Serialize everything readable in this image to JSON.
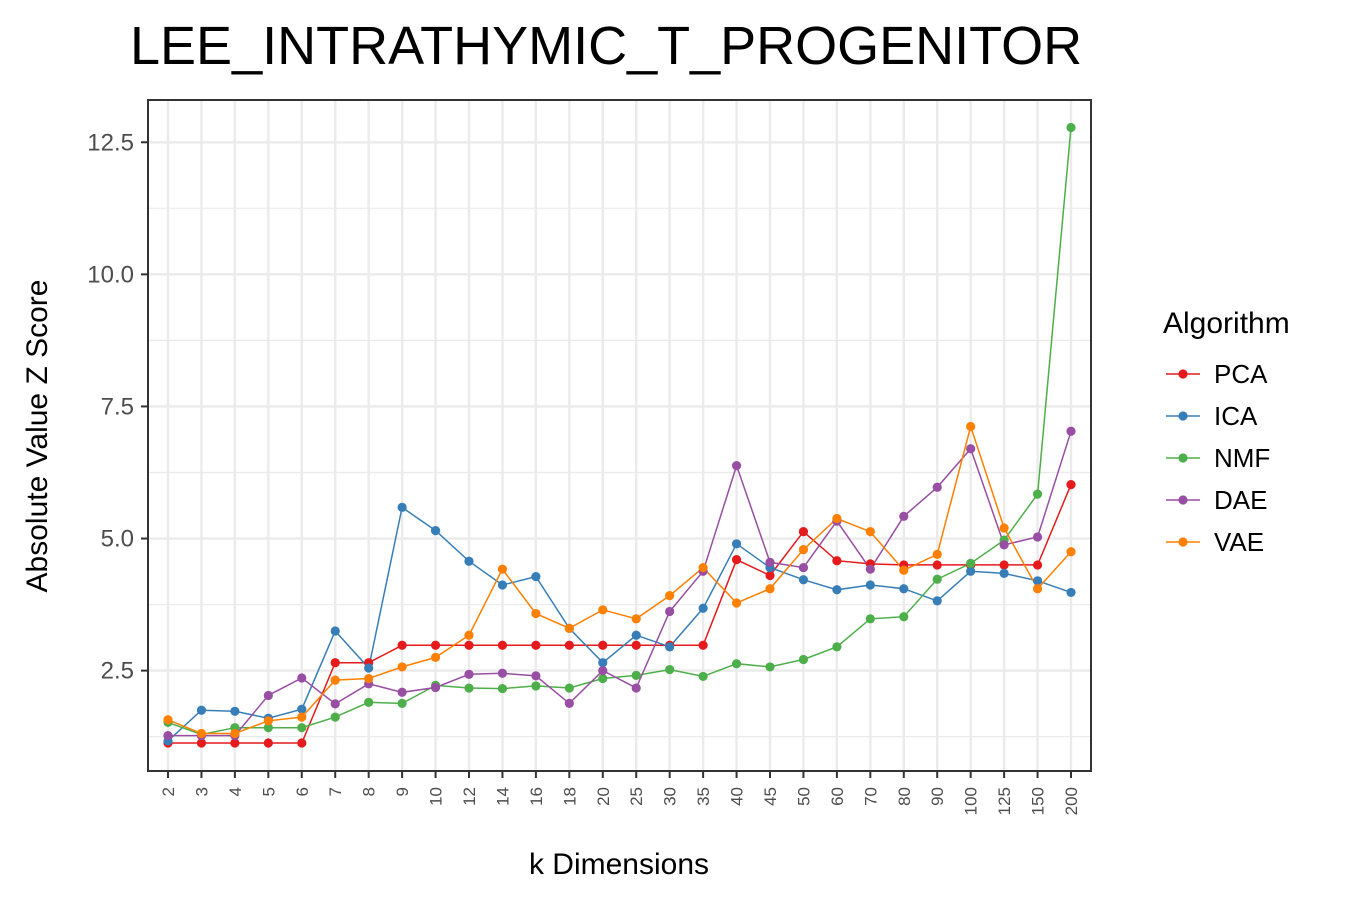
{
  "chart_data": {
    "type": "line",
    "title": "LEE_INTRATHYMIC_T_PROGENITOR",
    "xlabel": "k Dimensions",
    "ylabel": "Absolute Value Z Score",
    "categories": [
      "2",
      "3",
      "4",
      "5",
      "6",
      "7",
      "8",
      "9",
      "10",
      "12",
      "14",
      "16",
      "18",
      "20",
      "25",
      "30",
      "35",
      "40",
      "45",
      "50",
      "60",
      "70",
      "80",
      "90",
      "100",
      "125",
      "150",
      "200"
    ],
    "ylim": [
      0.6,
      13.3
    ],
    "yticks": [
      2.5,
      5.0,
      7.5,
      10.0,
      12.5
    ],
    "ytick_labels": [
      "2.5",
      "5.0",
      "7.5",
      "10.0",
      "12.5"
    ],
    "grid": true,
    "legend": {
      "title": "Algorithm",
      "position": "right"
    },
    "series": [
      {
        "name": "PCA",
        "color": "#E41A1C",
        "values": [
          1.13,
          1.13,
          1.13,
          1.13,
          1.13,
          2.65,
          2.65,
          2.98,
          2.98,
          2.98,
          2.98,
          2.98,
          2.98,
          2.98,
          2.98,
          2.98,
          2.98,
          4.6,
          4.3,
          5.13,
          4.58,
          4.52,
          4.5,
          4.5,
          4.5,
          4.5,
          4.5,
          6.02
        ]
      },
      {
        "name": "ICA",
        "color": "#377EB8",
        "values": [
          1.17,
          1.75,
          1.73,
          1.6,
          1.77,
          3.25,
          2.55,
          5.59,
          5.15,
          4.57,
          4.12,
          4.28,
          3.3,
          2.65,
          3.17,
          2.95,
          3.68,
          4.9,
          4.45,
          4.22,
          4.03,
          4.12,
          4.05,
          3.82,
          4.38,
          4.34,
          4.2,
          3.98
        ]
      },
      {
        "name": "NMF",
        "color": "#4DAF4A",
        "values": [
          1.52,
          1.29,
          1.42,
          1.42,
          1.42,
          1.62,
          1.9,
          1.88,
          2.22,
          2.17,
          2.16,
          2.21,
          2.17,
          2.35,
          2.41,
          2.52,
          2.39,
          2.63,
          2.57,
          2.71,
          2.95,
          3.48,
          3.52,
          4.23,
          4.53,
          4.97,
          5.84,
          12.78
        ]
      },
      {
        "name": "DAE",
        "color": "#984EA3",
        "values": [
          1.27,
          1.27,
          1.27,
          2.03,
          2.36,
          1.87,
          2.25,
          2.09,
          2.18,
          2.43,
          2.45,
          2.4,
          1.88,
          2.5,
          2.17,
          3.62,
          4.38,
          6.38,
          4.55,
          4.45,
          5.33,
          4.42,
          5.42,
          5.97,
          6.7,
          4.88,
          5.03,
          7.03
        ]
      },
      {
        "name": "VAE",
        "color": "#FF7F00",
        "values": [
          1.57,
          1.31,
          1.31,
          1.55,
          1.62,
          2.32,
          2.35,
          2.57,
          2.75,
          3.17,
          4.42,
          3.58,
          3.3,
          3.65,
          3.48,
          3.92,
          4.45,
          3.78,
          4.05,
          4.79,
          5.38,
          5.13,
          4.4,
          4.7,
          7.12,
          5.2,
          4.05,
          4.75
        ]
      }
    ]
  }
}
